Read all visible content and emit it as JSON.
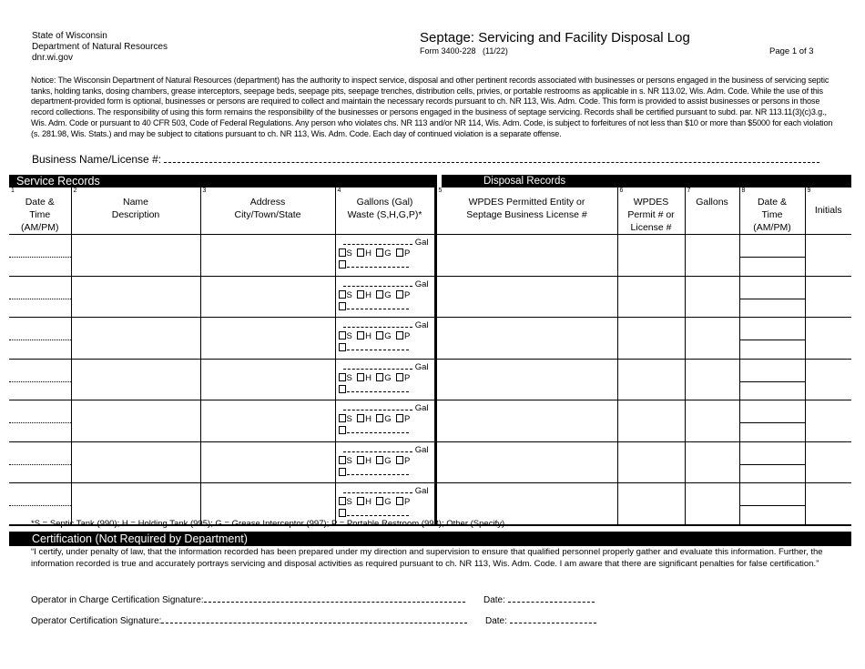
{
  "header": {
    "agency_lines": [
      "State of Wisconsin",
      "Department of Natural Resources",
      "dnr.wi.gov"
    ],
    "title": "Septage: Servicing and Facility Disposal Log",
    "form_number": "Form 3400-228   (11/22)",
    "page": "Page 1 of 3"
  },
  "notice": "Notice: The Wisconsin Department of Natural Resources (department) has the authority to inspect service, disposal and other pertinent records associated with businesses or persons engaged in the business of servicing septic tanks, holding tanks, dosing chambers, grease interceptors, seepage beds, seepage pits, seepage trenches, distribution cells, privies, or portable restrooms as applicable in s. NR 113.02, Wis. Adm. Code. While the use of this department-provided form is optional, businesses or persons are required to collect and maintain the necessary records pursuant to ch. NR 113, Wis. Adm. Code. This form is provided to assist businesses or persons in those record collections. The responsibility of using this form remains the responsibility of the businesses or persons engaged in the business of septage servicing. Records shall be certified pursuant to subd. par. NR 113.11(3)(c)3.g., Wis. Adm. Code or pursuant to 40 CFR 503, Code of Federal Regulations. Any person who violates chs. NR 113 and/or NR 114, Wis. Adm. Code, is subject to forfeitures of not less than $10 or more than $5000 for each violation (s. 281.98, Wis. Stats.) and may be subject to citations pursuant to ch. NR 113, Wis. Adm. Code. Each day of continued violation is a separate offense.",
  "business_label": "Business Name/License #:",
  "sections": {
    "service": "Service Records",
    "disposal": "Disposal Records"
  },
  "columns": [
    {
      "num": "1",
      "lines": [
        "Date &",
        "Time",
        "(AM/PM)"
      ]
    },
    {
      "num": "2",
      "lines": [
        "Name",
        "Description"
      ]
    },
    {
      "num": "3",
      "lines": [
        "Address",
        "City/Town/State"
      ]
    },
    {
      "num": "4",
      "lines": [
        "Gallons (Gal)",
        "Waste (S,H,G,P)*"
      ]
    },
    {
      "num": "5",
      "lines": [
        "WPDES Permitted Entity or",
        "Septage Business License #"
      ]
    },
    {
      "num": "6",
      "lines": [
        "WPDES",
        "Permit # or",
        "License #"
      ]
    },
    {
      "num": "7",
      "lines": [
        "Gallons"
      ]
    },
    {
      "num": "8",
      "lines": [
        "Date &",
        "Time",
        "(AM/PM)"
      ]
    },
    {
      "num": "9",
      "lines": [
        "Initials"
      ]
    }
  ],
  "waste_cell": {
    "gal": "Gal",
    "options": [
      "S",
      "H",
      "G",
      "P"
    ]
  },
  "row_count": 7,
  "legend": "*S = Septic Tank (990); H = Holding Tank (995); G = Grease Interceptor (997); P = Portable Restroom (998); Other (Specify)",
  "certification": {
    "title": "Certification (Not Required by Department)",
    "text": " “I certify, under penalty of law, that the information recorded has been prepared under my direction and supervision to ensure that qualified personnel properly gather and evaluate this information. Further, the information recorded is true and accurately portrays servicing and disposal activities as required pursuant to ch. NR 113, Wis. Adm. Code. I am aware that there are significant penalties for false certification.”",
    "operator_in_charge_label": "Operator in Charge Certification Signature:",
    "operator_label": "Operator Certification Signature:",
    "date_label": "Date:"
  }
}
